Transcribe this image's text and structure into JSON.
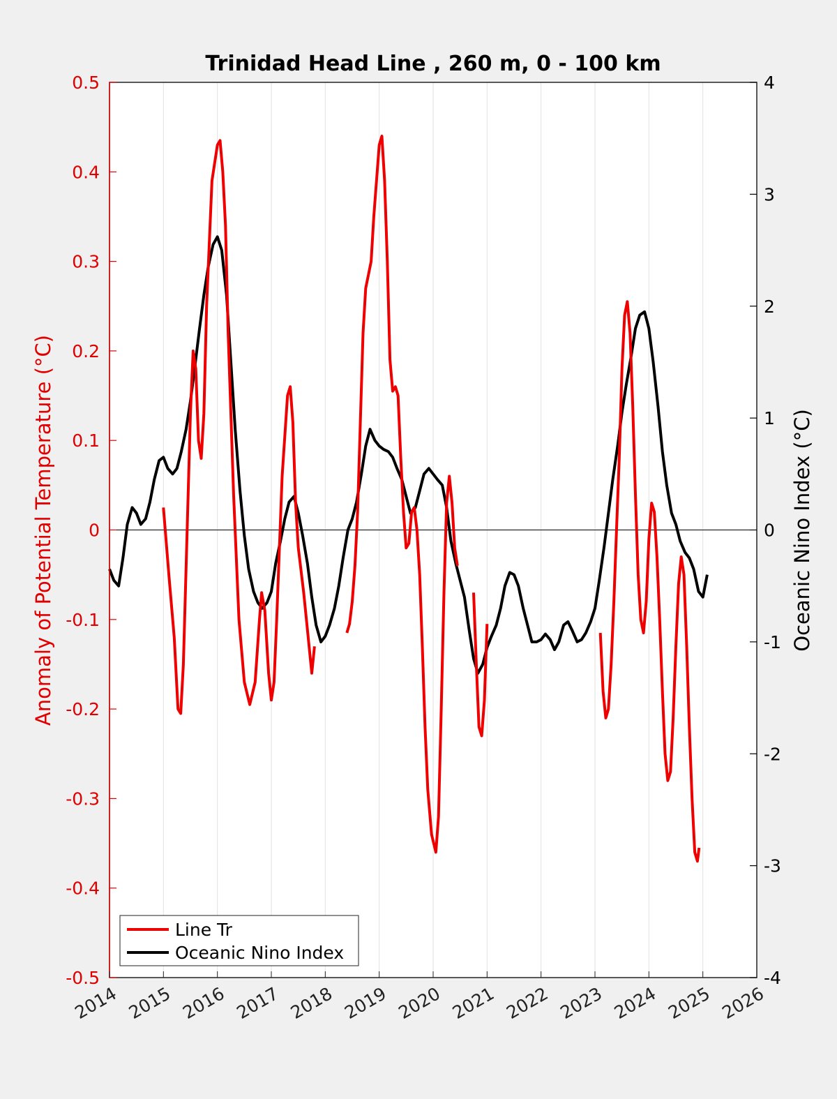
{
  "chart_data": {
    "type": "line",
    "title": "Trinidad Head Line , 260 m, 0 - 100 km",
    "ylabel": "Anomaly of Potential Temperature (°C)",
    "y2label": "Oceanic Nino Index (°C)",
    "xlim": [
      2014,
      2026
    ],
    "ylim": [
      -0.5,
      0.5
    ],
    "y2lim": [
      -4,
      4
    ],
    "x_ticks": [
      "2014",
      "2015",
      "2016",
      "2017",
      "2018",
      "2019",
      "2020",
      "2021",
      "2022",
      "2023",
      "2024",
      "2025",
      "2026"
    ],
    "y_ticks": [
      "-0.5",
      "-0.4",
      "-0.3",
      "-0.2",
      "-0.1",
      "0",
      "0.1",
      "0.2",
      "0.3",
      "0.4",
      "0.5"
    ],
    "y2_ticks": [
      "-4",
      "-3",
      "-2",
      "-1",
      "0",
      "1",
      "2",
      "3",
      "4"
    ],
    "grid": "vertical",
    "zero_line": true,
    "legend_position": "bottom-left",
    "colors": {
      "line_tr": "#ee0000",
      "oni": "#000000",
      "left_axis": "#e00000",
      "right_axis": "#000000"
    },
    "series": [
      {
        "name": "Line Tr",
        "axis": "left",
        "segments": [
          [
            [
              2015.0,
              0.025
            ],
            [
              2015.1,
              -0.05
            ],
            [
              2015.2,
              -0.12
            ],
            [
              2015.27,
              -0.2
            ],
            [
              2015.32,
              -0.205
            ],
            [
              2015.37,
              -0.15
            ],
            [
              2015.43,
              -0.02
            ],
            [
              2015.5,
              0.13
            ],
            [
              2015.55,
              0.2
            ],
            [
              2015.6,
              0.18
            ],
            [
              2015.65,
              0.1
            ],
            [
              2015.7,
              0.08
            ],
            [
              2015.75,
              0.13
            ],
            [
              2015.8,
              0.25
            ],
            [
              2015.9,
              0.39
            ],
            [
              2016.0,
              0.43
            ],
            [
              2016.05,
              0.435
            ],
            [
              2016.1,
              0.4
            ],
            [
              2016.15,
              0.34
            ],
            [
              2016.2,
              0.22
            ],
            [
              2016.3,
              0.04
            ],
            [
              2016.4,
              -0.1
            ],
            [
              2016.5,
              -0.17
            ],
            [
              2016.6,
              -0.195
            ],
            [
              2016.7,
              -0.17
            ],
            [
              2016.78,
              -0.1
            ],
            [
              2016.82,
              -0.07
            ],
            [
              2016.88,
              -0.09
            ],
            [
              2016.95,
              -0.16
            ],
            [
              2017.0,
              -0.19
            ],
            [
              2017.05,
              -0.17
            ],
            [
              2017.1,
              -0.1
            ],
            [
              2017.2,
              0.06
            ],
            [
              2017.3,
              0.15
            ],
            [
              2017.35,
              0.16
            ],
            [
              2017.4,
              0.12
            ],
            [
              2017.45,
              0.03
            ],
            [
              2017.5,
              -0.02
            ],
            [
              2017.6,
              -0.07
            ],
            [
              2017.65,
              -0.1
            ],
            [
              2017.75,
              -0.16
            ],
            [
              2017.8,
              -0.13
            ]
          ],
          [
            [
              2018.4,
              -0.115
            ],
            [
              2018.45,
              -0.105
            ],
            [
              2018.5,
              -0.08
            ],
            [
              2018.55,
              -0.04
            ],
            [
              2018.6,
              0.02
            ],
            [
              2018.65,
              0.12
            ],
            [
              2018.7,
              0.22
            ],
            [
              2018.75,
              0.27
            ],
            [
              2018.85,
              0.3
            ],
            [
              2018.9,
              0.35
            ],
            [
              2019.0,
              0.43
            ],
            [
              2019.05,
              0.44
            ],
            [
              2019.1,
              0.39
            ],
            [
              2019.15,
              0.3
            ],
            [
              2019.2,
              0.19
            ],
            [
              2019.25,
              0.155
            ],
            [
              2019.3,
              0.16
            ],
            [
              2019.35,
              0.15
            ],
            [
              2019.4,
              0.08
            ],
            [
              2019.45,
              0.02
            ],
            [
              2019.5,
              -0.02
            ],
            [
              2019.55,
              -0.015
            ],
            [
              2019.6,
              0.02
            ],
            [
              2019.65,
              0.025
            ],
            [
              2019.7,
              0.0
            ],
            [
              2019.75,
              -0.05
            ],
            [
              2019.8,
              -0.13
            ],
            [
              2019.85,
              -0.22
            ],
            [
              2019.9,
              -0.29
            ],
            [
              2019.97,
              -0.34
            ],
            [
              2020.05,
              -0.36
            ],
            [
              2020.1,
              -0.32
            ],
            [
              2020.15,
              -0.2
            ],
            [
              2020.2,
              -0.07
            ],
            [
              2020.25,
              0.03
            ],
            [
              2020.3,
              0.06
            ],
            [
              2020.35,
              0.03
            ],
            [
              2020.4,
              -0.02
            ],
            [
              2020.45,
              -0.04
            ]
          ],
          [
            [
              2020.75,
              -0.07
            ],
            [
              2020.8,
              -0.15
            ],
            [
              2020.85,
              -0.22
            ],
            [
              2020.9,
              -0.23
            ],
            [
              2020.95,
              -0.19
            ],
            [
              2021.0,
              -0.105
            ]
          ],
          [
            [
              2023.1,
              -0.115
            ],
            [
              2023.15,
              -0.18
            ],
            [
              2023.2,
              -0.21
            ],
            [
              2023.25,
              -0.2
            ],
            [
              2023.3,
              -0.15
            ],
            [
              2023.35,
              -0.08
            ],
            [
              2023.4,
              0.0
            ],
            [
              2023.45,
              0.08
            ],
            [
              2023.5,
              0.18
            ],
            [
              2023.55,
              0.24
            ],
            [
              2023.6,
              0.255
            ],
            [
              2023.65,
              0.22
            ],
            [
              2023.7,
              0.14
            ],
            [
              2023.75,
              0.04
            ],
            [
              2023.8,
              -0.05
            ],
            [
              2023.85,
              -0.1
            ],
            [
              2023.9,
              -0.115
            ],
            [
              2023.95,
              -0.08
            ],
            [
              2024.0,
              -0.01
            ],
            [
              2024.05,
              0.03
            ],
            [
              2024.1,
              0.02
            ],
            [
              2024.15,
              -0.03
            ],
            [
              2024.2,
              -0.1
            ],
            [
              2024.25,
              -0.18
            ],
            [
              2024.3,
              -0.25
            ],
            [
              2024.35,
              -0.28
            ],
            [
              2024.4,
              -0.27
            ],
            [
              2024.45,
              -0.21
            ],
            [
              2024.5,
              -0.13
            ],
            [
              2024.55,
              -0.06
            ],
            [
              2024.6,
              -0.03
            ],
            [
              2024.65,
              -0.05
            ],
            [
              2024.7,
              -0.13
            ],
            [
              2024.75,
              -0.22
            ],
            [
              2024.8,
              -0.3
            ],
            [
              2024.85,
              -0.36
            ],
            [
              2024.9,
              -0.37
            ],
            [
              2024.93,
              -0.355
            ]
          ]
        ]
      },
      {
        "name": "Oceanic Nino Index",
        "axis": "right",
        "segments": [
          [
            [
              2014.0,
              -0.35
            ],
            [
              2014.08,
              -0.45
            ],
            [
              2014.17,
              -0.5
            ],
            [
              2014.25,
              -0.25
            ],
            [
              2014.33,
              0.05
            ],
            [
              2014.42,
              0.2
            ],
            [
              2014.5,
              0.15
            ],
            [
              2014.58,
              0.05
            ],
            [
              2014.67,
              0.1
            ],
            [
              2014.75,
              0.25
            ],
            [
              2014.83,
              0.45
            ],
            [
              2014.92,
              0.62
            ],
            [
              2015.0,
              0.65
            ],
            [
              2015.08,
              0.55
            ],
            [
              2015.17,
              0.5
            ],
            [
              2015.25,
              0.55
            ],
            [
              2015.33,
              0.7
            ],
            [
              2015.42,
              0.9
            ],
            [
              2015.5,
              1.15
            ],
            [
              2015.58,
              1.45
            ],
            [
              2015.67,
              1.8
            ],
            [
              2015.75,
              2.1
            ],
            [
              2015.83,
              2.35
            ],
            [
              2015.92,
              2.55
            ],
            [
              2016.0,
              2.62
            ],
            [
              2016.08,
              2.5
            ],
            [
              2016.17,
              2.1
            ],
            [
              2016.25,
              1.5
            ],
            [
              2016.33,
              0.9
            ],
            [
              2016.42,
              0.35
            ],
            [
              2016.5,
              -0.05
            ],
            [
              2016.58,
              -0.35
            ],
            [
              2016.67,
              -0.55
            ],
            [
              2016.75,
              -0.65
            ],
            [
              2016.83,
              -0.7
            ],
            [
              2016.92,
              -0.65
            ],
            [
              2017.0,
              -0.55
            ],
            [
              2017.08,
              -0.3
            ],
            [
              2017.17,
              -0.1
            ],
            [
              2017.25,
              0.1
            ],
            [
              2017.33,
              0.25
            ],
            [
              2017.42,
              0.3
            ],
            [
              2017.5,
              0.15
            ],
            [
              2017.58,
              -0.05
            ],
            [
              2017.67,
              -0.3
            ],
            [
              2017.75,
              -0.6
            ],
            [
              2017.83,
              -0.85
            ],
            [
              2017.92,
              -1.0
            ],
            [
              2018.0,
              -0.95
            ],
            [
              2018.08,
              -0.85
            ],
            [
              2018.17,
              -0.7
            ],
            [
              2018.25,
              -0.5
            ],
            [
              2018.33,
              -0.25
            ],
            [
              2018.42,
              0.0
            ],
            [
              2018.5,
              0.1
            ],
            [
              2018.58,
              0.25
            ],
            [
              2018.67,
              0.5
            ],
            [
              2018.75,
              0.75
            ],
            [
              2018.83,
              0.9
            ],
            [
              2018.92,
              0.8
            ],
            [
              2019.0,
              0.75
            ],
            [
              2019.08,
              0.72
            ],
            [
              2019.17,
              0.7
            ],
            [
              2019.25,
              0.65
            ],
            [
              2019.33,
              0.55
            ],
            [
              2019.42,
              0.45
            ],
            [
              2019.5,
              0.3
            ],
            [
              2019.58,
              0.15
            ],
            [
              2019.67,
              0.2
            ],
            [
              2019.75,
              0.35
            ],
            [
              2019.83,
              0.5
            ],
            [
              2019.92,
              0.55
            ],
            [
              2020.0,
              0.5
            ],
            [
              2020.08,
              0.45
            ],
            [
              2020.17,
              0.4
            ],
            [
              2020.25,
              0.2
            ],
            [
              2020.33,
              -0.1
            ],
            [
              2020.42,
              -0.3
            ],
            [
              2020.5,
              -0.45
            ],
            [
              2020.58,
              -0.6
            ],
            [
              2020.67,
              -0.9
            ],
            [
              2020.75,
              -1.15
            ],
            [
              2020.83,
              -1.28
            ],
            [
              2020.92,
              -1.2
            ],
            [
              2021.0,
              -1.05
            ],
            [
              2021.08,
              -0.95
            ],
            [
              2021.17,
              -0.85
            ],
            [
              2021.25,
              -0.7
            ],
            [
              2021.33,
              -0.5
            ],
            [
              2021.42,
              -0.38
            ],
            [
              2021.5,
              -0.4
            ],
            [
              2021.58,
              -0.5
            ],
            [
              2021.67,
              -0.7
            ],
            [
              2021.75,
              -0.85
            ],
            [
              2021.83,
              -1.0
            ],
            [
              2021.92,
              -1.0
            ],
            [
              2022.0,
              -0.98
            ],
            [
              2022.08,
              -0.93
            ],
            [
              2022.17,
              -0.98
            ],
            [
              2022.25,
              -1.07
            ],
            [
              2022.33,
              -1.0
            ],
            [
              2022.42,
              -0.85
            ],
            [
              2022.5,
              -0.82
            ],
            [
              2022.58,
              -0.9
            ],
            [
              2022.67,
              -1.0
            ],
            [
              2022.75,
              -0.98
            ],
            [
              2022.83,
              -0.92
            ],
            [
              2022.92,
              -0.82
            ],
            [
              2023.0,
              -0.7
            ],
            [
              2023.08,
              -0.45
            ],
            [
              2023.17,
              -0.15
            ],
            [
              2023.25,
              0.15
            ],
            [
              2023.33,
              0.45
            ],
            [
              2023.42,
              0.75
            ],
            [
              2023.5,
              1.05
            ],
            [
              2023.58,
              1.3
            ],
            [
              2023.67,
              1.55
            ],
            [
              2023.75,
              1.8
            ],
            [
              2023.83,
              1.92
            ],
            [
              2023.92,
              1.95
            ],
            [
              2024.0,
              1.8
            ],
            [
              2024.08,
              1.5
            ],
            [
              2024.17,
              1.1
            ],
            [
              2024.25,
              0.7
            ],
            [
              2024.33,
              0.4
            ],
            [
              2024.42,
              0.15
            ],
            [
              2024.5,
              0.05
            ],
            [
              2024.58,
              -0.1
            ],
            [
              2024.67,
              -0.2
            ],
            [
              2024.75,
              -0.25
            ],
            [
              2024.83,
              -0.35
            ],
            [
              2024.92,
              -0.55
            ],
            [
              2025.0,
              -0.6
            ],
            [
              2025.08,
              -0.4
            ]
          ]
        ]
      }
    ]
  },
  "legend": {
    "items": [
      {
        "label": "Line Tr",
        "color": "#ee0000"
      },
      {
        "label": "Oceanic Nino Index",
        "color": "#000000"
      }
    ]
  }
}
